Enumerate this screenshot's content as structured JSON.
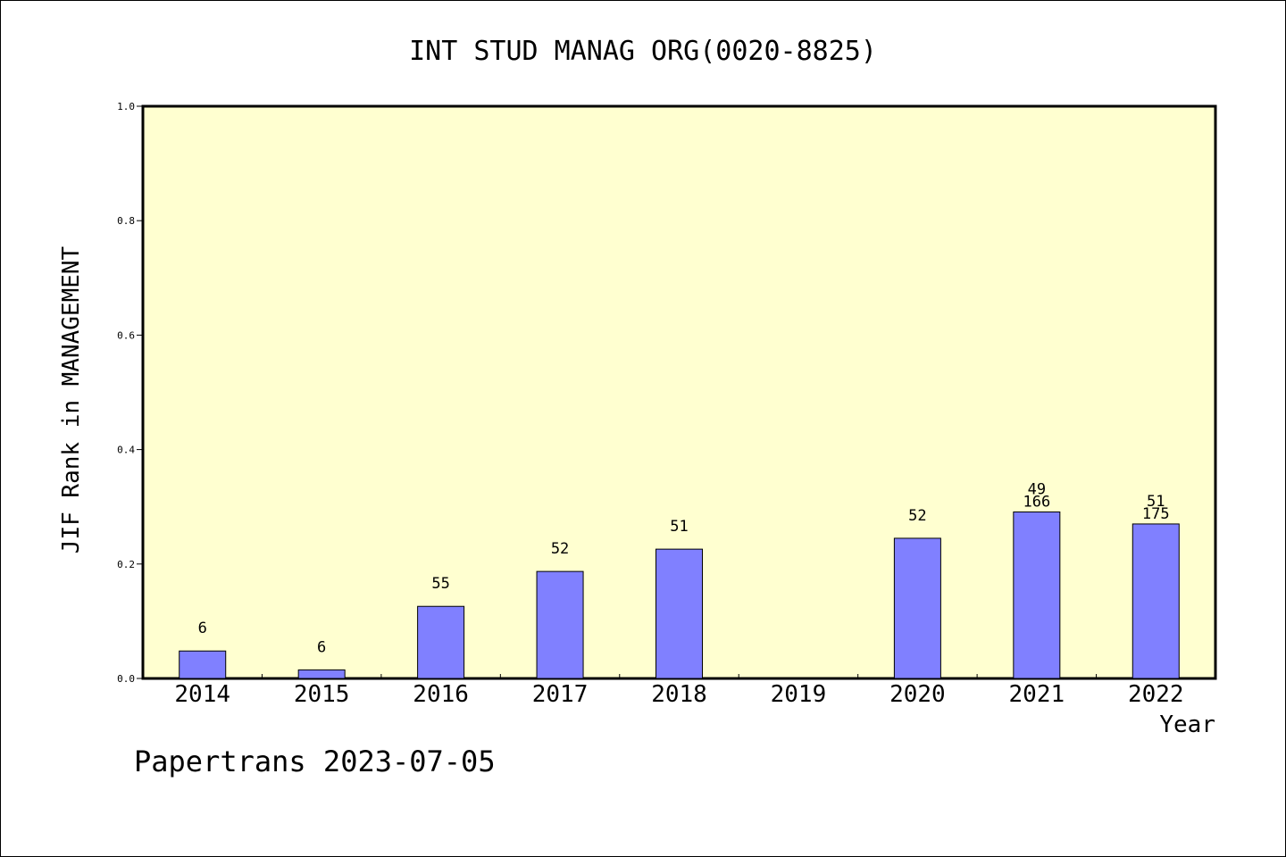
{
  "chart_data": {
    "type": "bar",
    "title": "INT STUD MANAG ORG(0020-8825)",
    "xlabel": "Year",
    "ylabel": "JIF Rank in MANAGEMENT",
    "ylim": [
      0,
      1.0
    ],
    "yticks": [
      "0.0",
      "0.2",
      "0.4",
      "0.6",
      "0.8",
      "1.0"
    ],
    "categories": [
      "2014",
      "2015",
      "2016",
      "2017",
      "2018",
      "2019",
      "2020",
      "2021",
      "2022"
    ],
    "values": [
      0.048,
      0.015,
      0.126,
      0.187,
      0.226,
      null,
      0.245,
      0.291,
      0.27
    ],
    "rank_labels": [
      "6",
      "6",
      "55",
      "52",
      "51",
      "",
      "52",
      "49",
      "51"
    ],
    "total_labels": [
      "",
      "",
      "",
      "",
      "",
      "",
      "",
      "166",
      "175"
    ],
    "grid": false,
    "plot_background": "#ffffd0",
    "bar_color": "#8080ff"
  },
  "footer": "Papertrans 2023-07-05"
}
